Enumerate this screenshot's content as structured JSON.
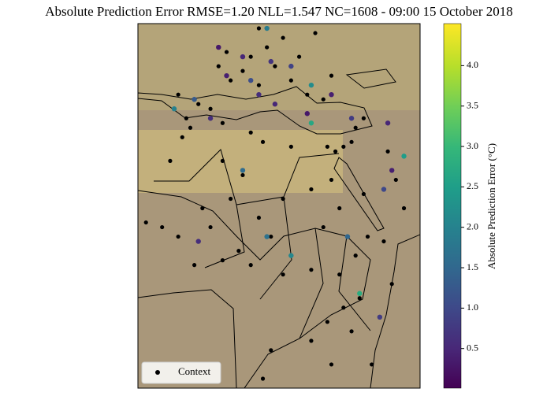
{
  "chart_data": {
    "type": "scatter",
    "title": "Absolute Prediction Error RMSE=1.20 NLL=1.547 NC=1608 - 09:00 15 October 2018",
    "xlim": [
      -18,
      52
    ],
    "ylim": [
      -20,
      57
    ],
    "legend": "lower left",
    "context": {
      "name": "Context",
      "color": "#000000",
      "x": [
        2,
        5,
        10,
        14,
        8,
        12,
        -3,
        -6,
        0,
        16,
        20,
        24,
        28,
        30,
        -8,
        4,
        18,
        22,
        26,
        12,
        3,
        10,
        -7,
        -5,
        13,
        20,
        31,
        29,
        33,
        35,
        36,
        38,
        -10,
        3,
        8,
        5,
        -2,
        12,
        18,
        25,
        30,
        32,
        28,
        15,
        0,
        -12,
        -16,
        -8,
        7,
        3,
        -4,
        10,
        18,
        25,
        32,
        36,
        39,
        43,
        45,
        37,
        33,
        29,
        35,
        25,
        15,
        13,
        40,
        30,
        46,
        44,
        48,
        38
      ],
      "y": [
        48,
        45,
        50,
        52,
        47,
        44,
        40,
        37,
        39,
        48,
        45,
        42,
        41,
        46,
        42,
        51,
        54,
        50,
        55,
        56,
        36,
        34,
        33,
        35,
        32,
        31,
        30,
        31,
        31,
        32,
        35,
        37,
        28,
        28,
        25,
        20,
        18,
        16,
        20,
        22,
        24,
        18,
        14,
        12,
        14,
        14,
        15,
        12,
        9,
        7,
        6,
        6,
        4,
        5,
        4,
        8,
        12,
        11,
        2,
        -1,
        -3,
        -6,
        -8,
        -10,
        -12,
        -18,
        -15,
        -15,
        24,
        30,
        18,
        21
      ]
    },
    "targets": {
      "x": [
        2,
        8,
        15,
        4,
        10,
        20,
        -4,
        12,
        25,
        16,
        30,
        35,
        24,
        -9,
        0,
        14,
        44,
        48,
        45,
        43,
        34,
        37,
        20,
        14,
        -3,
        42,
        8,
        25
      ],
      "y": [
        52,
        50,
        49,
        46,
        45,
        48,
        41,
        42,
        44,
        40,
        42,
        37,
        38,
        39,
        37,
        56,
        36,
        29,
        26,
        22,
        12,
        0,
        8,
        12,
        11,
        -5,
        26,
        36
      ],
      "values": [
        0.3,
        0.5,
        0.7,
        0.4,
        1.1,
        0.9,
        1.3,
        0.6,
        2.2,
        0.5,
        0.4,
        0.8,
        0.3,
        2.0,
        0.6,
        1.9,
        0.5,
        2.5,
        0.4,
        1.0,
        1.5,
        2.8,
        2.1,
        1.7,
        0.6,
        0.8,
        1.6,
        2.7
      ]
    },
    "colorbar": {
      "label": "Absolute Prediction Error (°C)",
      "colormap": "viridis",
      "lim": [
        0.01,
        4.52
      ],
      "ticks": [
        0.5,
        {
          "value": 1,
          "label": "1.0"
        },
        1.5,
        {
          "value": 2,
          "label": "2.0"
        },
        2.5,
        {
          "value": 3,
          "label": "3.0"
        },
        3.5,
        {
          "value": 4,
          "label": "4.0"
        }
      ]
    }
  }
}
